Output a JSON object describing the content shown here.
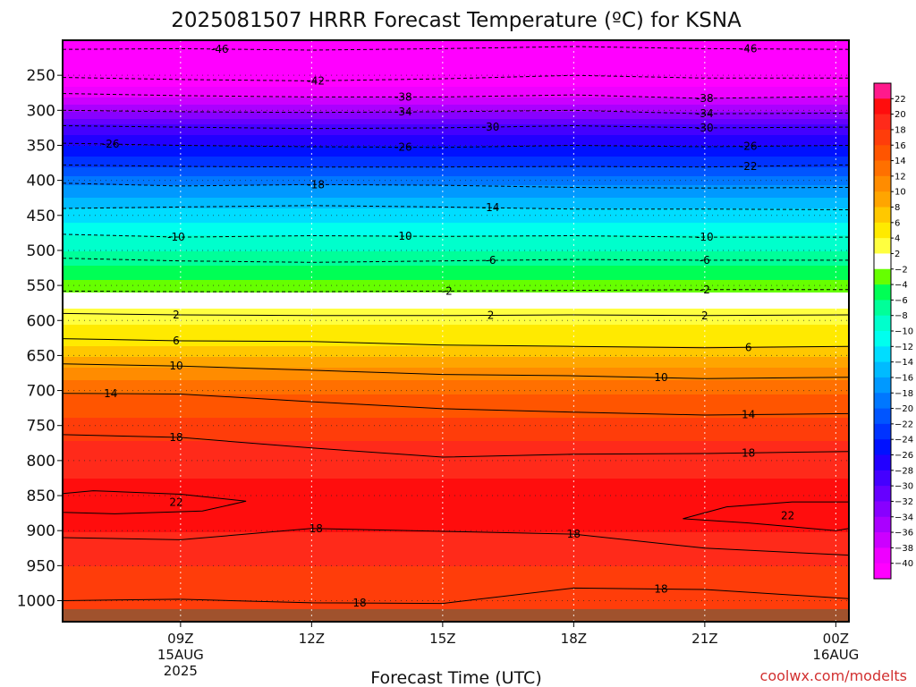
{
  "chart_data": {
    "type": "heatmap",
    "title": "2025081507 HRRR Forecast Temperature (ºC) for KSNA",
    "xlabel": "Forecast Time (UTC)",
    "ylabel": "",
    "credit": "coolwx.com/modelts",
    "x_range_hours": [
      6.3,
      24.3
    ],
    "y_range_hpa": [
      1030,
      200
    ],
    "y_ticks": [
      "250",
      "300",
      "350",
      "400",
      "450",
      "500",
      "550",
      "600",
      "650",
      "700",
      "750",
      "800",
      "850",
      "900",
      "950",
      "1000"
    ],
    "y_tick_values": [
      250,
      300,
      350,
      400,
      450,
      500,
      550,
      600,
      650,
      700,
      750,
      800,
      850,
      900,
      950,
      1000
    ],
    "x_ticks": [
      {
        "hour": 9,
        "label": "09Z",
        "sub1": "15AUG",
        "sub2": "2025"
      },
      {
        "hour": 12,
        "label": "12Z",
        "sub1": "",
        "sub2": ""
      },
      {
        "hour": 15,
        "label": "15Z",
        "sub1": "",
        "sub2": ""
      },
      {
        "hour": 18,
        "label": "18Z",
        "sub1": "",
        "sub2": ""
      },
      {
        "hour": 21,
        "label": "21Z",
        "sub1": "",
        "sub2": ""
      },
      {
        "hour": 24,
        "label": "00Z",
        "sub1": "16AUG",
        "sub2": ""
      }
    ],
    "temperature_profile": [
      {
        "p": 210,
        "t": -48
      },
      {
        "p": 230,
        "t": -47
      },
      {
        "p": 250,
        "t": -42
      },
      {
        "p": 265,
        "t": -40
      },
      {
        "p": 280,
        "t": -38
      },
      {
        "p": 300,
        "t": -34
      },
      {
        "p": 320,
        "t": -30
      },
      {
        "p": 350,
        "t": -26
      },
      {
        "p": 380,
        "t": -22
      },
      {
        "p": 405,
        "t": -18
      },
      {
        "p": 440,
        "t": -14
      },
      {
        "p": 478,
        "t": -10
      },
      {
        "p": 520,
        "t": -6
      },
      {
        "p": 560,
        "t": -2
      },
      {
        "p": 582,
        "t": 2
      },
      {
        "p": 605,
        "t": 4
      },
      {
        "p": 635,
        "t": 6
      },
      {
        "p": 665,
        "t": 10
      },
      {
        "p": 705,
        "t": 14
      },
      {
        "p": 770,
        "t": 18
      },
      {
        "p": 850,
        "t": 21
      },
      {
        "p": 900,
        "t": 20
      },
      {
        "p": 950,
        "t": 18
      },
      {
        "p": 1000,
        "t": 17
      }
    ],
    "ground_level_hpa": 1012,
    "ground_color": "#a0522d",
    "colorbar": {
      "levels": [
        22,
        20,
        18,
        16,
        14,
        12,
        10,
        8,
        6,
        4,
        2,
        -2,
        -4,
        -6,
        -8,
        -10,
        -12,
        -14,
        -16,
        -18,
        -20,
        -22,
        -24,
        -26,
        -28,
        -30,
        -32,
        -34,
        -36,
        -38,
        -40
      ],
      "labels": [
        "22",
        "20",
        "18",
        "16",
        "14",
        "12",
        "10",
        "8",
        "6",
        "4",
        "2",
        "−2",
        "−4",
        "−6",
        "−8",
        "−10",
        "−12",
        "−14",
        "−16",
        "−18",
        "−20",
        "−22",
        "−24",
        "−26",
        "−28",
        "−30",
        "−32",
        "−34",
        "−36",
        "−38",
        "−40"
      ],
      "colors": [
        "#ff1a8c",
        "#ff0d0d",
        "#ff2a1a",
        "#ff3d0a",
        "#ff5500",
        "#ff7000",
        "#ff8c00",
        "#ffa500",
        "#ffc800",
        "#ffea00",
        "#ffff40",
        "#ffffff",
        "#66ff00",
        "#00ff55",
        "#00ff99",
        "#00ffcc",
        "#00ffee",
        "#00ddff",
        "#00bbff",
        "#0099ff",
        "#0077ff",
        "#0055ff",
        "#0033ff",
        "#0011ff",
        "#2200ff",
        "#4400ff",
        "#6600ff",
        "#8800ff",
        "#aa00ff",
        "#cc00ff",
        "#ee00ff",
        "#ff00ff"
      ]
    },
    "contours": [
      {
        "label": "-46",
        "dashed": true,
        "points": [
          [
            6.3,
            213
          ],
          [
            9,
            212
          ],
          [
            12,
            214
          ],
          [
            15,
            212
          ],
          [
            18,
            209
          ],
          [
            21,
            212
          ],
          [
            24.3,
            213
          ]
        ],
        "labels_at": [
          [
            9.9,
            "left"
          ],
          [
            22.0,
            "right"
          ]
        ]
      },
      {
        "label": "-42",
        "dashed": true,
        "points": [
          [
            6.3,
            253
          ],
          [
            9,
            256
          ],
          [
            12,
            258
          ],
          [
            15,
            255
          ],
          [
            18,
            250
          ],
          [
            21,
            254
          ],
          [
            24.3,
            254
          ]
        ],
        "labels_at": [
          [
            12.1,
            "left"
          ]
        ]
      },
      {
        "label": "-38",
        "dashed": true,
        "points": [
          [
            6.3,
            276
          ],
          [
            9,
            279
          ],
          [
            12,
            281
          ],
          [
            15,
            281
          ],
          [
            18,
            278
          ],
          [
            21,
            283
          ],
          [
            24.3,
            280
          ]
        ],
        "labels_at": [
          [
            14.1,
            "left"
          ],
          [
            21.0,
            "right"
          ]
        ]
      },
      {
        "label": "-34",
        "dashed": true,
        "points": [
          [
            6.3,
            300
          ],
          [
            9,
            302
          ],
          [
            12,
            303
          ],
          [
            15,
            302
          ],
          [
            18,
            300
          ],
          [
            21,
            305
          ],
          [
            24.3,
            304
          ]
        ],
        "labels_at": [
          [
            14.1,
            "left"
          ],
          [
            21.0,
            "right"
          ]
        ]
      },
      {
        "label": "-30",
        "dashed": true,
        "points": [
          [
            6.3,
            322
          ],
          [
            9,
            324
          ],
          [
            12,
            326
          ],
          [
            15,
            325
          ],
          [
            18,
            322
          ],
          [
            21,
            325
          ],
          [
            24.3,
            324
          ]
        ],
        "labels_at": [
          [
            16.1,
            "left"
          ],
          [
            21.0,
            "right"
          ]
        ]
      },
      {
        "label": "-26",
        "dashed": true,
        "points": [
          [
            6.3,
            347
          ],
          [
            9,
            350
          ],
          [
            12,
            352
          ],
          [
            15,
            353
          ],
          [
            18,
            350
          ],
          [
            21,
            352
          ],
          [
            24.3,
            350
          ]
        ],
        "labels_at": [
          [
            7.4,
            "left"
          ],
          [
            14.1,
            "left"
          ],
          [
            22.0,
            "right"
          ]
        ]
      },
      {
        "label": "-22",
        "dashed": true,
        "points": [
          [
            6.3,
            378
          ],
          [
            9,
            380
          ],
          [
            12,
            381
          ],
          [
            15,
            381
          ],
          [
            18,
            380
          ],
          [
            21,
            381
          ],
          [
            24.3,
            378
          ]
        ],
        "labels_at": [
          [
            22.0,
            "right"
          ]
        ]
      },
      {
        "label": "-18",
        "dashed": true,
        "points": [
          [
            6.3,
            404
          ],
          [
            9,
            408
          ],
          [
            12,
            406
          ],
          [
            15,
            407
          ],
          [
            18,
            410
          ],
          [
            21,
            411
          ],
          [
            24.3,
            410
          ]
        ],
        "labels_at": [
          [
            12.1,
            "left"
          ]
        ]
      },
      {
        "label": "-14",
        "dashed": true,
        "points": [
          [
            6.3,
            440
          ],
          [
            9,
            438
          ],
          [
            12,
            436
          ],
          [
            15,
            438
          ],
          [
            18,
            441
          ],
          [
            21,
            441
          ],
          [
            24.3,
            442
          ]
        ],
        "labels_at": [
          [
            16.1,
            "left"
          ]
        ]
      },
      {
        "label": "-10",
        "dashed": true,
        "points": [
          [
            6.3,
            477
          ],
          [
            9,
            481
          ],
          [
            12,
            479
          ],
          [
            15,
            480
          ],
          [
            18,
            479
          ],
          [
            21,
            481
          ],
          [
            24.3,
            481
          ]
        ],
        "labels_at": [
          [
            8.9,
            "left"
          ],
          [
            14.1,
            "left"
          ],
          [
            21.0,
            "right"
          ]
        ]
      },
      {
        "label": "-6",
        "dashed": true,
        "points": [
          [
            6.3,
            511
          ],
          [
            9,
            515
          ],
          [
            12,
            517
          ],
          [
            15,
            515
          ],
          [
            18,
            513
          ],
          [
            21,
            514
          ],
          [
            24.3,
            514
          ]
        ],
        "labels_at": [
          [
            16.1,
            "left"
          ],
          [
            21.0,
            "right"
          ]
        ]
      },
      {
        "label": "-2",
        "dashed": true,
        "points": [
          [
            6.3,
            558
          ],
          [
            9,
            559
          ],
          [
            12,
            559
          ],
          [
            15,
            558
          ],
          [
            18,
            557
          ],
          [
            21,
            556
          ],
          [
            24.3,
            556
          ]
        ],
        "labels_at": [
          [
            15.1,
            "left"
          ],
          [
            21.0,
            "right"
          ]
        ]
      },
      {
        "label": "2",
        "dashed": false,
        "points": [
          [
            6.3,
            590
          ],
          [
            9,
            592
          ],
          [
            12,
            593
          ],
          [
            15,
            593
          ],
          [
            18,
            592
          ],
          [
            21,
            593
          ],
          [
            24.3,
            592
          ]
        ],
        "labels_at": [
          [
            8.9,
            "left"
          ],
          [
            16.1,
            "left"
          ],
          [
            21.0,
            "right"
          ]
        ]
      },
      {
        "label": "6",
        "dashed": false,
        "points": [
          [
            6.3,
            626
          ],
          [
            9,
            629
          ],
          [
            12,
            630
          ],
          [
            15,
            635
          ],
          [
            18,
            637
          ],
          [
            21,
            639
          ],
          [
            24.3,
            637
          ]
        ],
        "labels_at": [
          [
            8.9,
            "left"
          ],
          [
            22.0,
            "right"
          ]
        ]
      },
      {
        "label": "10",
        "dashed": false,
        "points": [
          [
            6.3,
            662
          ],
          [
            9,
            665
          ],
          [
            12,
            671
          ],
          [
            15,
            677
          ],
          [
            18,
            679
          ],
          [
            21,
            683
          ],
          [
            24.3,
            681
          ]
        ],
        "labels_at": [
          [
            8.9,
            "left"
          ],
          [
            20.0,
            "right"
          ]
        ]
      },
      {
        "label": "14",
        "dashed": false,
        "points": [
          [
            6.3,
            704
          ],
          [
            9,
            705
          ],
          [
            12,
            716
          ],
          [
            15,
            726
          ],
          [
            18,
            731
          ],
          [
            21,
            735
          ],
          [
            24.3,
            733
          ]
        ],
        "labels_at": [
          [
            7.4,
            "left"
          ],
          [
            22.0,
            "right"
          ]
        ]
      },
      {
        "label": "18",
        "dashed": false,
        "points": [
          [
            6.3,
            763
          ],
          [
            9,
            767
          ],
          [
            12,
            782
          ],
          [
            15,
            795
          ],
          [
            18,
            791
          ],
          [
            21,
            790
          ],
          [
            24.3,
            787
          ]
        ],
        "labels_at": [
          [
            8.9,
            "left"
          ],
          [
            22.0,
            "right"
          ]
        ]
      },
      {
        "label": "22",
        "dashed": false,
        "closed": true,
        "points": [
          [
            6.3,
            847
          ],
          [
            7,
            843
          ],
          [
            9,
            848
          ],
          [
            10.5,
            858
          ],
          [
            9.5,
            872
          ],
          [
            7.5,
            876
          ],
          [
            6.3,
            874
          ]
        ],
        "labels_at": [
          [
            8.9,
            "left"
          ]
        ]
      },
      {
        "label": "22",
        "dashed": false,
        "closed": true,
        "points": [
          [
            24.3,
            859
          ],
          [
            23,
            859
          ],
          [
            21.5,
            866
          ],
          [
            20.5,
            883
          ],
          [
            22,
            889
          ],
          [
            24,
            900
          ],
          [
            24.3,
            897
          ]
        ],
        "labels_at": [
          [
            22.9,
            "right"
          ]
        ]
      },
      {
        "label": "18",
        "dashed": false,
        "points": [
          [
            6.3,
            910
          ],
          [
            9,
            913
          ],
          [
            12,
            897
          ],
          [
            15,
            901
          ],
          [
            18,
            905
          ],
          [
            21,
            925
          ],
          [
            24.3,
            935
          ]
        ],
        "labels_at": [
          [
            12.1,
            "left"
          ],
          [
            18.0,
            "right"
          ]
        ]
      },
      {
        "label": "18",
        "dashed": false,
        "points": [
          [
            6.3,
            1000
          ],
          [
            9,
            998
          ],
          [
            12,
            1003
          ],
          [
            15,
            1004
          ],
          [
            18,
            982
          ],
          [
            21,
            984
          ],
          [
            24.3,
            997
          ]
        ],
        "labels_at": [
          [
            13.1,
            "left"
          ],
          [
            20.0,
            "right"
          ]
        ]
      }
    ]
  }
}
